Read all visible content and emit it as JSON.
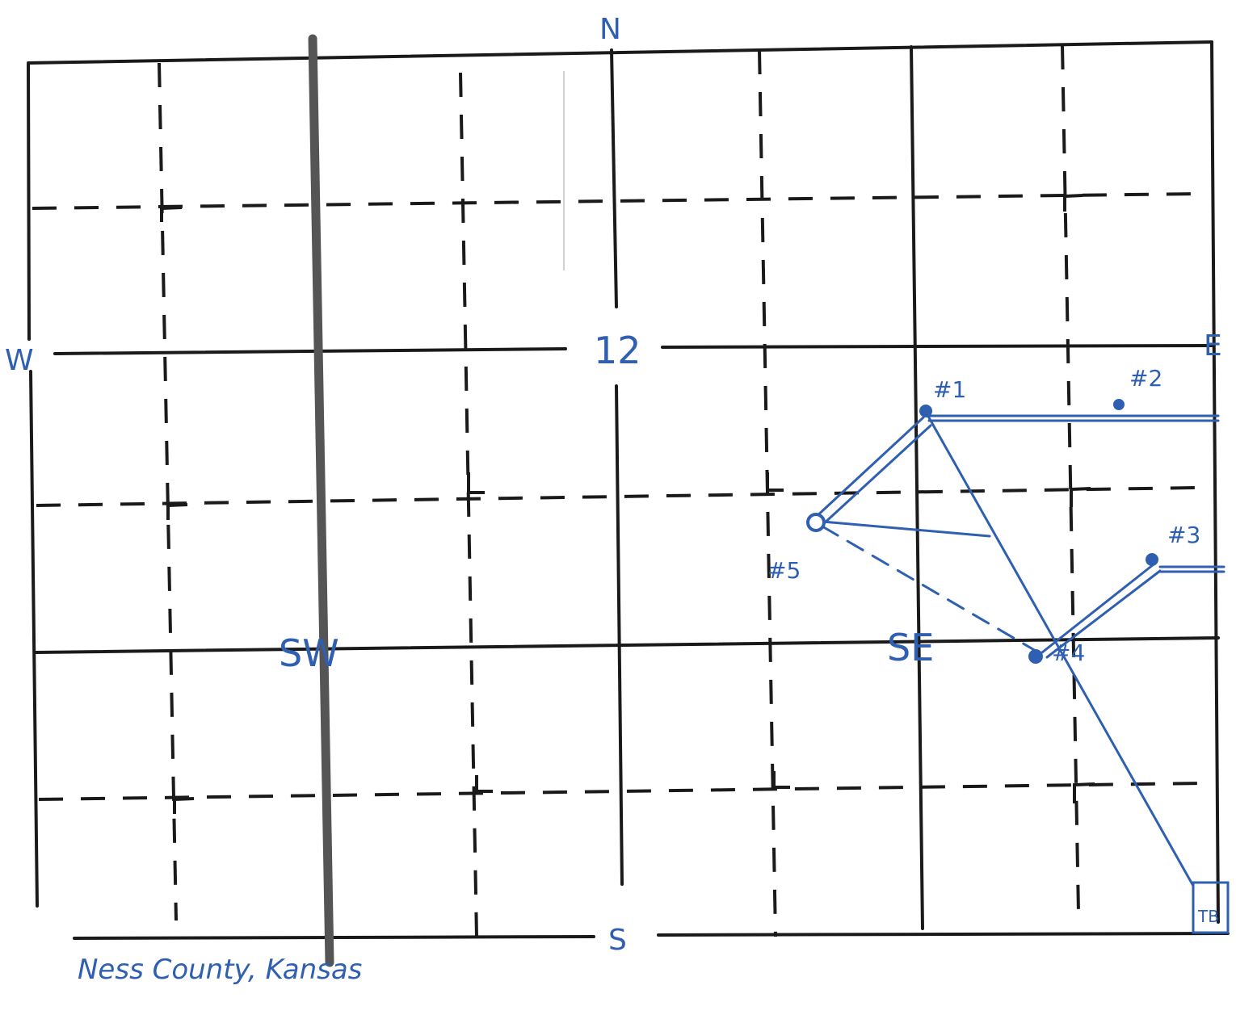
{
  "compass": {
    "north": "N",
    "south": "S",
    "west": "W",
    "east": "E"
  },
  "section": {
    "number": "12",
    "sw_corner": "SW",
    "se_corner": "SE"
  },
  "wells": {
    "w1": "#1",
    "w2": "#2",
    "w3": "#3",
    "w4": "#4",
    "w5": "#5"
  },
  "tank_battery": "TB",
  "caption": "Ness County, Kansas",
  "colors": {
    "grid": "#1a1a1a",
    "ink": "#2f5fb0",
    "road": "#555555"
  }
}
